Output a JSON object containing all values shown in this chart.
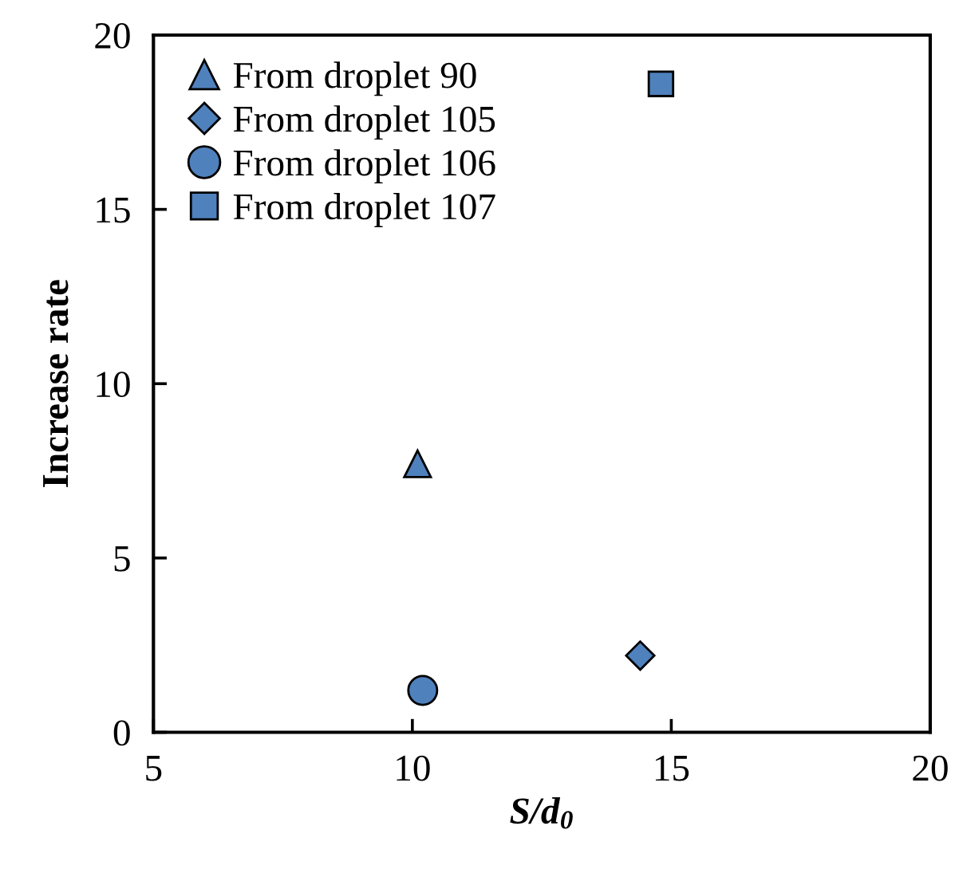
{
  "chart_data": {
    "type": "scatter",
    "xlabel": "S/d$_{0}$",
    "ylabel": "Increase rate",
    "series": [
      {
        "name": "From droplet 90",
        "color": "#4f81bd",
        "marker": "triangle",
        "x": [
          10.1
        ],
        "values": [
          7.7
        ]
      },
      {
        "name": "From droplet 105",
        "color": "#4f81bd",
        "marker": "diamond",
        "x": [
          14.4
        ],
        "values": [
          2.2
        ]
      },
      {
        "name": "From droplet 106",
        "color": "#4f81bd",
        "marker": "circle",
        "x": [
          10.2
        ],
        "values": [
          1.2
        ]
      },
      {
        "name": "From droplet 107",
        "color": "#4f81bd",
        "marker": "square",
        "x": [
          14.8
        ],
        "values": [
          18.6
        ]
      }
    ],
    "xlim": [
      5,
      20
    ],
    "xticks": [
      5,
      10,
      15,
      20
    ],
    "ylim": [
      0,
      20
    ],
    "yticks": [
      0,
      5,
      10,
      15,
      20
    ],
    "grid": false,
    "legend": "top left"
  }
}
